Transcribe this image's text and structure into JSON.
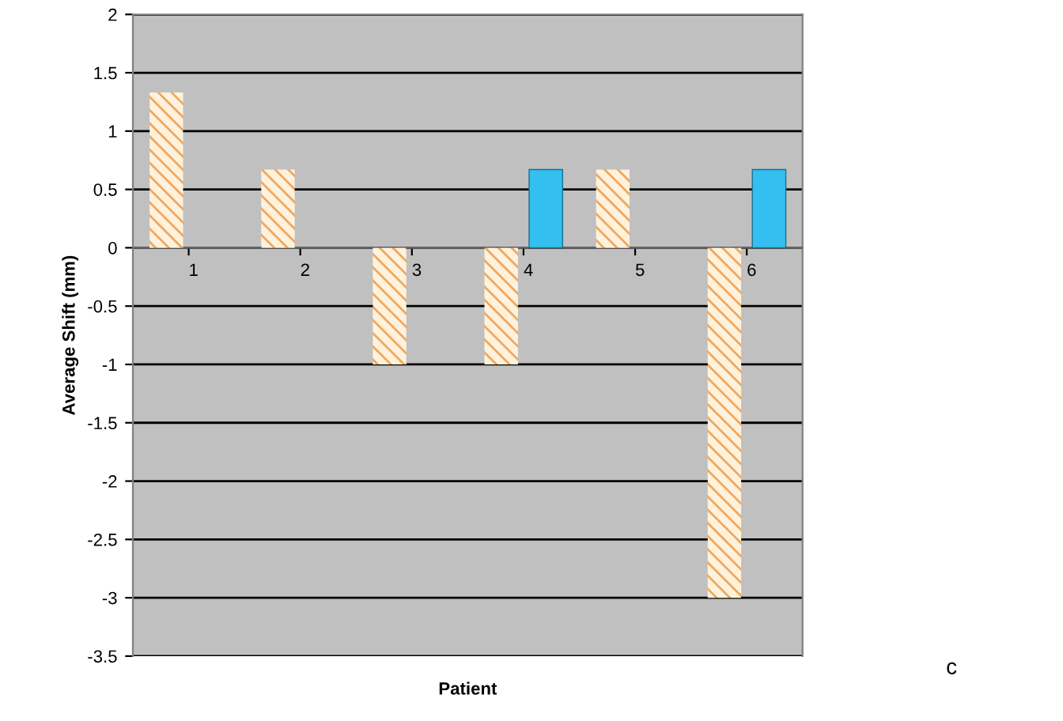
{
  "chart_data": {
    "type": "bar",
    "xlabel": "Patient",
    "ylabel": "Average Shift (mm)",
    "categories": [
      "1",
      "2",
      "3",
      "4",
      "5",
      "6"
    ],
    "series": [
      {
        "color": "#f0a860",
        "values": [
          1.33,
          0.67,
          -1,
          -1,
          0.67,
          -3
        ]
      },
      {
        "color": "#33c0f0",
        "values": [
          null,
          null,
          null,
          0.67,
          null,
          0.67
        ]
      }
    ],
    "ylim": [
      -3.5,
      2
    ],
    "yticks": [
      -3.5,
      -3,
      -2.5,
      -2,
      -1.5,
      -1,
      -0.5,
      0,
      0.5,
      1,
      1.5,
      2
    ],
    "grid": "y",
    "annotations": [
      "c"
    ]
  }
}
